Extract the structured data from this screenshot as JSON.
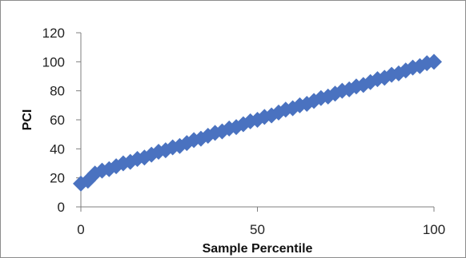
{
  "chart_data": {
    "type": "scatter",
    "title": "",
    "xlabel": "Sample Percentile",
    "ylabel": "PCI",
    "xlim": [
      0,
      100
    ],
    "ylim": [
      0,
      120
    ],
    "x_ticks": [
      0,
      50,
      100
    ],
    "y_ticks": [
      0,
      20,
      40,
      60,
      80,
      100,
      120
    ],
    "grid": false,
    "legend": "none",
    "marker": "diamond",
    "colors": {
      "marker": "#4A72C0",
      "axis": "#7f7f7f",
      "text": "#222222"
    },
    "series": [
      {
        "x": [
          0,
          2,
          4,
          6,
          8,
          10,
          12,
          14,
          16,
          18,
          20,
          22,
          24,
          26,
          28,
          30,
          32,
          34,
          36,
          38,
          40,
          42,
          44,
          46,
          48,
          50,
          52,
          54,
          56,
          58,
          60,
          62,
          64,
          66,
          68,
          70,
          72,
          74,
          76,
          78,
          80,
          82,
          84,
          86,
          88,
          90,
          92,
          94,
          96,
          98,
          100
        ],
        "y": [
          16,
          18,
          23,
          25,
          26,
          28,
          30,
          31,
          33,
          34,
          36,
          38,
          39,
          41,
          42,
          44,
          46,
          47,
          49,
          51,
          52,
          54,
          55,
          57,
          59,
          60,
          62,
          63,
          65,
          67,
          68,
          70,
          71,
          73,
          75,
          76,
          78,
          80,
          81,
          83,
          84,
          86,
          88,
          89,
          91,
          92,
          94,
          96,
          97,
          99,
          100
        ]
      }
    ]
  }
}
